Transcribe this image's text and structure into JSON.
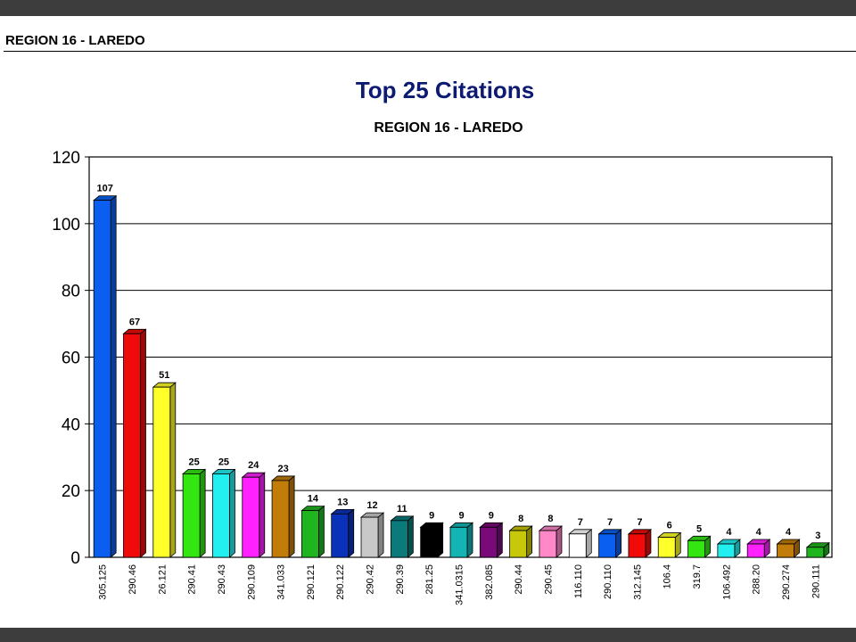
{
  "header": {
    "title": "REGION 16 - LAREDO"
  },
  "chart_data": {
    "type": "bar",
    "title": "Top 25 Citations",
    "subtitle": "REGION 16 - LAREDO",
    "xlabel": "",
    "ylabel": "",
    "ylim": [
      0,
      120
    ],
    "yticks": [
      0,
      20,
      40,
      60,
      80,
      100,
      120
    ],
    "grid": true,
    "categories": [
      "305.125",
      "290.46",
      "26.121",
      "290.41",
      "290.43",
      "290.109",
      "341.033",
      "290.121",
      "290.122",
      "290.42",
      "290.39",
      "281.25",
      "341.0315",
      "382.085",
      "290.44",
      "290.45",
      "116.110",
      "290.110",
      "312.145",
      "106.4",
      "319.7",
      "106.492",
      "288.20",
      "290.274",
      "290.111"
    ],
    "values": [
      107,
      67,
      51,
      25,
      25,
      24,
      23,
      14,
      13,
      12,
      11,
      9,
      9,
      9,
      8,
      8,
      7,
      7,
      7,
      6,
      5,
      4,
      4,
      4,
      3
    ],
    "colors": [
      "#0a5ff0",
      "#f00a0a",
      "#ffff2a",
      "#33e612",
      "#22f0f0",
      "#ff22ff",
      "#c27c0a",
      "#1eb51e",
      "#0a32b8",
      "#c8c8c8",
      "#0a7a7a",
      "#000000",
      "#14b4b4",
      "#7a0a7a",
      "#c8c80a",
      "#ff88c8",
      "#ffffff",
      "#0a5ff0",
      "#f00a0a",
      "#ffff2a",
      "#33e612",
      "#22f0f0",
      "#ff22ff",
      "#c27c0a",
      "#1eb51e"
    ]
  }
}
